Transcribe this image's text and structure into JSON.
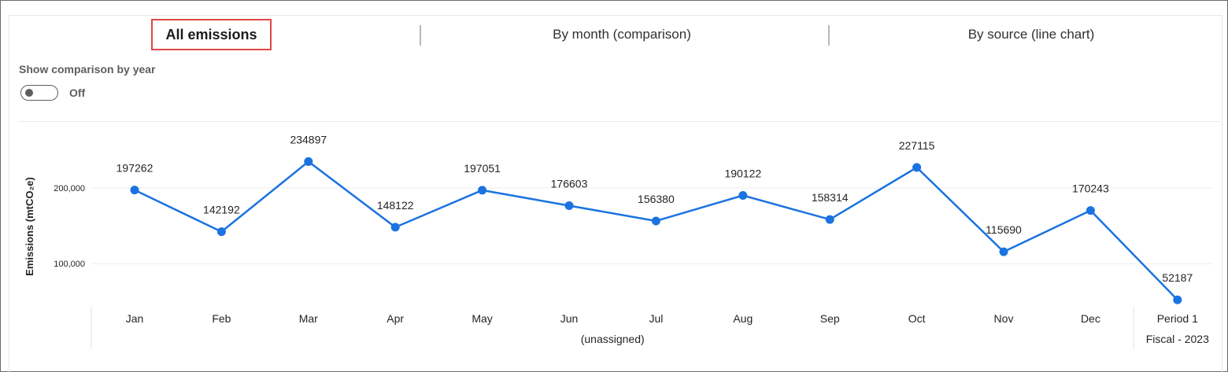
{
  "tabs": [
    {
      "label": "All emissions",
      "active": true
    },
    {
      "label": "By month (comparison)",
      "active": false
    },
    {
      "label": "By source (line chart)",
      "active": false
    }
  ],
  "toggle": {
    "label": "Show comparison by year",
    "state_label": "Off",
    "on": false
  },
  "colors": {
    "line": "#1a73e0",
    "active_tab_border": "#e04646"
  },
  "chart_data": {
    "type": "line",
    "ylabel": "Emissions (mtCO₂e)",
    "ylim": [
      40000,
      250000
    ],
    "yticks": [
      {
        "value": 100000,
        "label": "100,000"
      },
      {
        "value": 200000,
        "label": "200,000"
      }
    ],
    "categories": [
      "Jan",
      "Feb",
      "Mar",
      "Apr",
      "May",
      "Jun",
      "Jul",
      "Aug",
      "Sep",
      "Oct",
      "Nov",
      "Dec",
      "Period 1"
    ],
    "values": [
      197262,
      142192,
      234897,
      148122,
      197051,
      176603,
      156380,
      190122,
      158314,
      227115,
      115690,
      170243,
      52187
    ],
    "groups": [
      {
        "label": "(unassigned)",
        "start": 0,
        "end": 11
      },
      {
        "label": "Fiscal - 2023",
        "start": 12,
        "end": 12
      }
    ],
    "grid": true,
    "data_labels": true
  }
}
